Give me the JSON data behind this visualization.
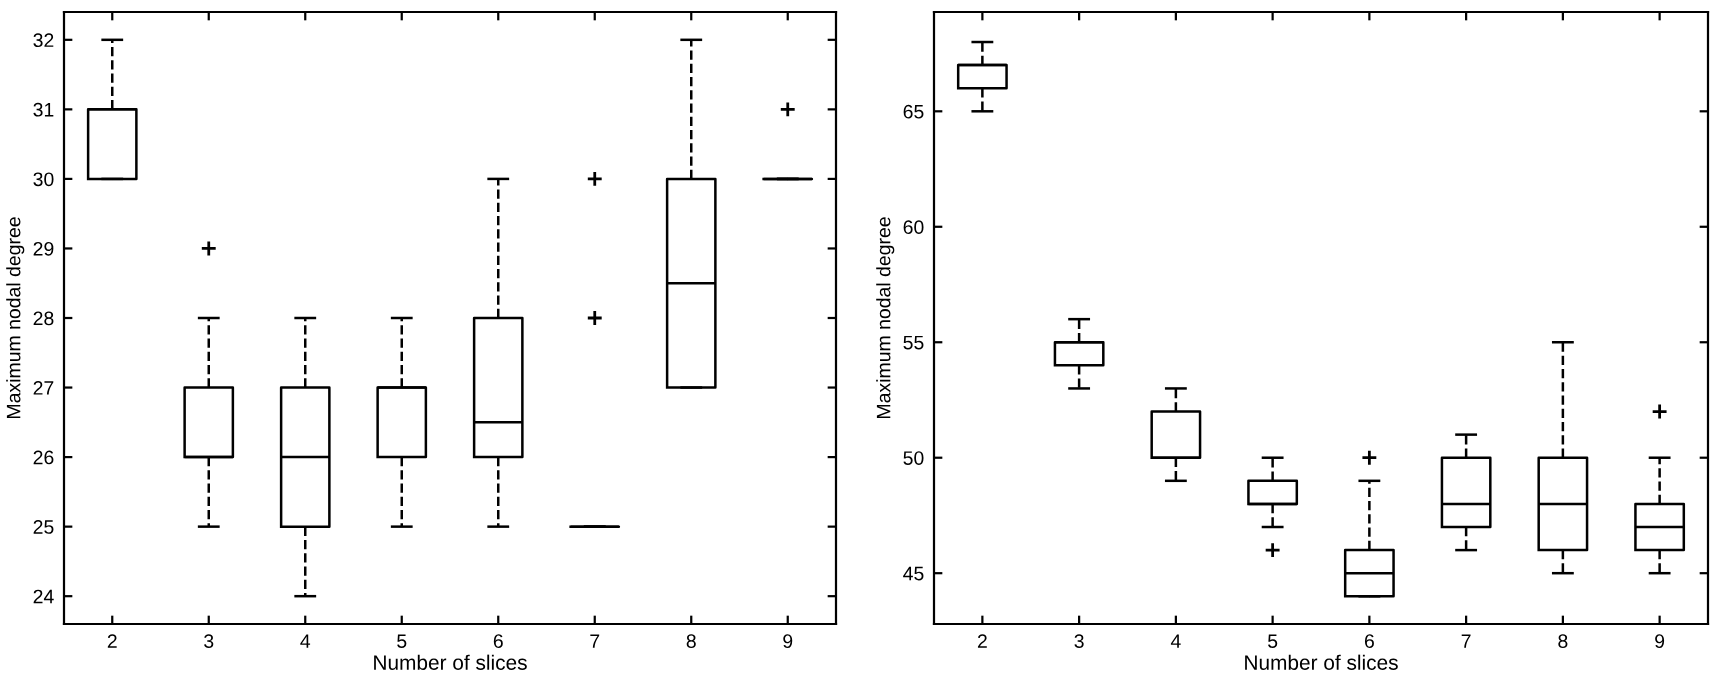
{
  "chart_data": [
    {
      "type": "box",
      "xlabel": "Number of slices",
      "ylabel": "Maximum nodal degree",
      "categories": [
        "2",
        "3",
        "4",
        "5",
        "6",
        "7",
        "8",
        "9"
      ],
      "ylim": [
        23.6,
        32.4
      ],
      "yticks": [
        24,
        25,
        26,
        27,
        28,
        29,
        30,
        31,
        32
      ],
      "grid": false,
      "color": "#000000",
      "line_style": "dashed",
      "marker": "cross",
      "boxes": [
        {
          "low": 30,
          "q1": 30,
          "median": 31,
          "q3": 31,
          "high": 32
        },
        {
          "low": 25,
          "q1": 26,
          "median": 26,
          "q3": 27,
          "high": 28,
          "outliers": [
            29
          ]
        },
        {
          "low": 24,
          "q1": 25,
          "median": 26,
          "q3": 27,
          "high": 28
        },
        {
          "low": 25,
          "q1": 26,
          "median": 27,
          "q3": 27,
          "high": 28
        },
        {
          "low": 25,
          "q1": 26,
          "median": 26.5,
          "q3": 28,
          "high": 30
        },
        {
          "low": 25,
          "q1": 25,
          "median": 25,
          "q3": 25,
          "high": 25,
          "outliers": [
            28,
            30
          ]
        },
        {
          "low": 27,
          "q1": 27,
          "median": 28.5,
          "q3": 30,
          "high": 32
        },
        {
          "low": 30,
          "q1": 30,
          "median": 30,
          "q3": 30,
          "high": 30,
          "outliers": [
            31
          ]
        }
      ]
    },
    {
      "type": "box",
      "xlabel": "Number of slices",
      "ylabel": "Maximum nodal degree",
      "categories": [
        "2",
        "3",
        "4",
        "5",
        "6",
        "7",
        "8",
        "9"
      ],
      "ylim": [
        42.8,
        69.3
      ],
      "yticks": [
        45,
        50,
        55,
        60,
        65
      ],
      "grid": false,
      "color": "#000000",
      "line_style": "dashed",
      "marker": "cross",
      "boxes": [
        {
          "low": 65,
          "q1": 66,
          "median": 67,
          "q3": 67,
          "high": 68
        },
        {
          "low": 53,
          "q1": 54,
          "median": 55,
          "q3": 55,
          "high": 56
        },
        {
          "low": 49,
          "q1": 50,
          "median": 50,
          "q3": 52,
          "high": 53
        },
        {
          "low": 47,
          "q1": 48,
          "median": 48,
          "q3": 49,
          "high": 50,
          "outliers": [
            46
          ]
        },
        {
          "low": 44,
          "q1": 44,
          "median": 45,
          "q3": 46,
          "high": 49,
          "outliers": [
            50
          ]
        },
        {
          "low": 46,
          "q1": 47,
          "median": 48,
          "q3": 50,
          "high": 51
        },
        {
          "low": 45,
          "q1": 46,
          "median": 48,
          "q3": 50,
          "high": 55
        },
        {
          "low": 45,
          "q1": 46,
          "median": 47,
          "q3": 48,
          "high": 50,
          "outliers": [
            52
          ]
        }
      ]
    }
  ]
}
